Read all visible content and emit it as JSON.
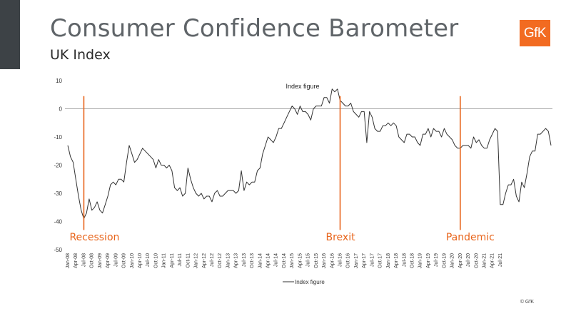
{
  "header": {
    "title": "Consumer Confidence Barometer",
    "subtitle": "UK Index",
    "logo_text": "GfK"
  },
  "footer": {
    "copyright": "© GfK"
  },
  "colors": {
    "line": "#333333",
    "event": "#e8651c",
    "axis": "#888888",
    "logo": "#f26b21"
  },
  "chart_data": {
    "type": "line",
    "title": "Index figure",
    "xlabel": "",
    "ylabel": "",
    "ylim": [
      -50,
      10
    ],
    "yticks": [
      10,
      0,
      -10,
      -20,
      -30,
      -40,
      -50
    ],
    "grid": false,
    "legend": "bottom-center",
    "x_tick_labels": [
      "Jan-08",
      "Apr-08",
      "Jul-08",
      "Oct-08",
      "Jan-09",
      "Apr-09",
      "Jul-09",
      "Oct-09",
      "Jan-10",
      "Apr-10",
      "Jul-10",
      "Oct-10",
      "Jan-11",
      "Apr-11",
      "Jul-11",
      "Oct-11",
      "Jan-12",
      "Apr-12",
      "Jul-12",
      "Oct-12",
      "Jan-13",
      "Apr-13",
      "Jul-13",
      "Oct-13",
      "Jan-14",
      "Apr-14",
      "Jul-14",
      "Oct-14",
      "Jan-15",
      "Apr-15",
      "Jul-15",
      "Oct-15",
      "Jan-16",
      "Apr-16",
      "Jul-16",
      "Oct-16",
      "Jan-17",
      "Apr-17",
      "Jul-17",
      "Oct-17",
      "Jan-18",
      "Apr-18",
      "Jul-18",
      "Oct-18",
      "Jan-19",
      "Apr-19",
      "Jul-19",
      "Oct-19",
      "Jan-20",
      "Apr-20",
      "Jul-20",
      "Oct-20",
      "Jan-21",
      "Apr-21",
      "Jul-21"
    ],
    "series": [
      {
        "name": "Index figure",
        "values": [
          -13,
          -17,
          -19,
          -25,
          -31,
          -36,
          -39,
          -37,
          -32,
          -36,
          -35,
          -33,
          -36,
          -37,
          -34,
          -31,
          -27,
          -26,
          -27,
          -25,
          -25,
          -26,
          -19,
          -13,
          -16,
          -19,
          -18,
          -16,
          -14,
          -15,
          -16,
          -17,
          -18,
          -21,
          -18,
          -20,
          -20,
          -21,
          -20,
          -22,
          -28,
          -29,
          -28,
          -31,
          -30,
          -21,
          -25,
          -28,
          -30,
          -31,
          -30,
          -32,
          -31,
          -31,
          -33,
          -30,
          -29,
          -31,
          -31,
          -30,
          -29,
          -29,
          -29,
          -30,
          -29,
          -22,
          -29,
          -26,
          -27,
          -26,
          -26,
          -22,
          -21,
          -16,
          -13,
          -10,
          -11,
          -12,
          -10,
          -7,
          -7,
          -5,
          -3,
          -1,
          1,
          0,
          -2,
          1,
          -1,
          -1,
          -2,
          -4,
          0,
          1,
          1,
          1,
          4,
          4,
          2,
          7,
          6,
          7,
          3,
          2,
          1,
          1,
          2,
          -1,
          -2,
          -3,
          -1,
          -1,
          -12,
          -1,
          -3,
          -7,
          -8,
          -8,
          -6,
          -6,
          -5,
          -6,
          -5,
          -6,
          -10,
          -11,
          -12,
          -9,
          -9,
          -10,
          -10,
          -12,
          -13,
          -9,
          -9,
          -7,
          -10,
          -7,
          -8,
          -8,
          -10,
          -7,
          -9,
          -10,
          -11,
          -13,
          -14,
          -14,
          -13,
          -13,
          -13,
          -14,
          -10,
          -12,
          -11,
          -13,
          -14,
          -14,
          -11,
          -9,
          -7,
          -8,
          -34,
          -34,
          -30,
          -27,
          -27,
          -25,
          -31,
          -33,
          -26,
          -28,
          -23,
          -17,
          -15,
          -15,
          -9,
          -9,
          -8,
          -7,
          -8,
          -13
        ]
      }
    ],
    "annotations": [
      {
        "label": "Recession",
        "x_index": 6
      },
      {
        "label": "Brexit",
        "x_index": 102
      },
      {
        "label": "Pandemic",
        "x_index": 147
      }
    ]
  }
}
